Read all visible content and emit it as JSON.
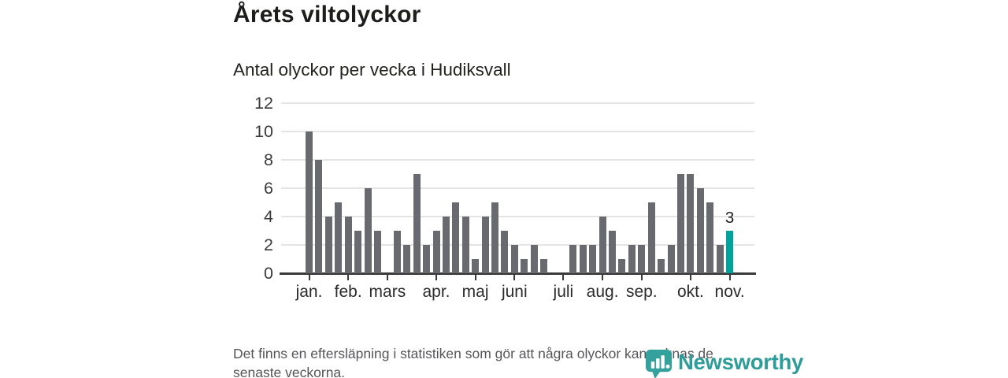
{
  "header": {
    "title": "Årets viltolyckor",
    "subtitle": "Antal olyckor per vecka i Hudiksvall"
  },
  "footer": {
    "line1": "Det finns en eftersläpning i statistiken som gör att några olyckor kan saknas de",
    "line2": "senaste veckorna."
  },
  "logo": {
    "text": "Newsworthy",
    "icon": "newsworthy-bar-chart-bubble-icon",
    "color": "#2e9c99"
  },
  "colors": {
    "bar_gray": "#696970",
    "highlight_teal": "#00a299",
    "axis": "#3a3a3a",
    "grid": "#e4e4e4",
    "title_text": "#1d1d1b",
    "footer_text": "#56565a"
  },
  "chart_data": {
    "type": "bar",
    "title": "Årets viltolyckor",
    "subtitle": "Antal olyckor per vecka i Hudiksvall",
    "xlabel": "",
    "ylabel": "Antal olyckor per vecka",
    "x_unit": "vecka 1–44",
    "values": [
      10,
      8,
      4,
      5,
      4,
      3,
      6,
      3,
      0,
      3,
      2,
      7,
      2,
      3,
      4,
      5,
      4,
      1,
      4,
      5,
      3,
      2,
      1,
      2,
      1,
      0,
      0,
      2,
      2,
      2,
      4,
      3,
      1,
      2,
      2,
      5,
      1,
      2,
      7,
      7,
      6,
      5,
      2,
      3
    ],
    "highlight": {
      "index": 43,
      "label": "3",
      "value": 3
    },
    "ylim": [
      0,
      12
    ],
    "y_ticks": [
      0,
      2,
      4,
      6,
      8,
      10,
      12
    ],
    "grid": true,
    "legend": "none",
    "month_ticks": [
      {
        "label": "jan.",
        "week": 1
      },
      {
        "label": "feb.",
        "week": 5
      },
      {
        "label": "mars",
        "week": 9
      },
      {
        "label": "apr.",
        "week": 14
      },
      {
        "label": "maj",
        "week": 18
      },
      {
        "label": "juni",
        "week": 22
      },
      {
        "label": "juli",
        "week": 27
      },
      {
        "label": "aug.",
        "week": 31
      },
      {
        "label": "sep.",
        "week": 35
      },
      {
        "label": "okt.",
        "week": 40
      },
      {
        "label": "nov.",
        "week": 44
      }
    ],
    "bar_color": "#696970",
    "highlight_color": "#00a299"
  }
}
